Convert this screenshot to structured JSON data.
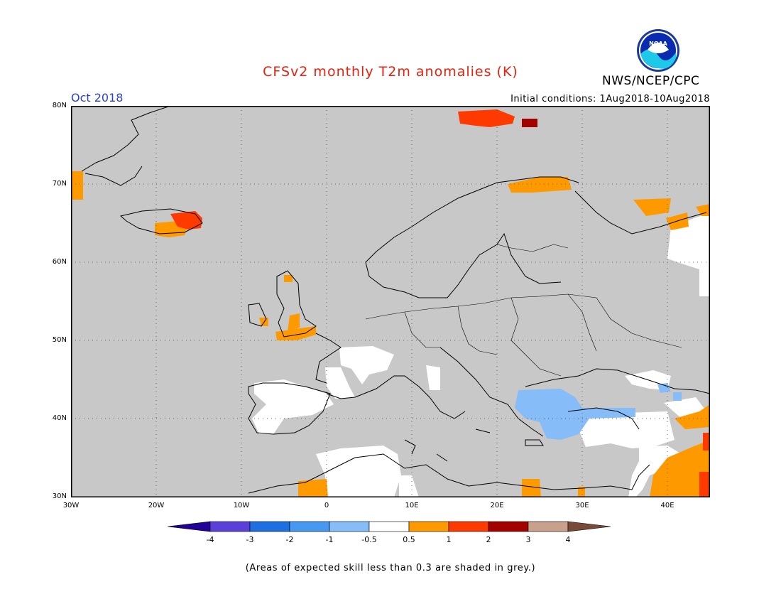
{
  "header": {
    "title": "CFSv2 monthly T2m anomalies (K)",
    "period": "Oct 2018",
    "initial_conditions": "Initial conditions: 1Aug2018-10Aug2018",
    "agency": "NWS/NCEP/CPC",
    "logo_text": "NOAA"
  },
  "axes": {
    "lat_labels": [
      "80N",
      "70N",
      "60N",
      "50N",
      "40N",
      "30N"
    ],
    "lon_labels": [
      "30W",
      "20W",
      "10W",
      "0",
      "10E",
      "20E",
      "30E",
      "40E"
    ],
    "lon_range": [
      -30,
      45
    ],
    "lat_range": [
      30,
      80
    ],
    "grid": "dotted"
  },
  "legend": {
    "ticks": [
      "-4",
      "-3",
      "-2",
      "-1",
      "-0.5",
      "0.5",
      "1",
      "2",
      "3",
      "4"
    ],
    "colors": [
      "#22009a",
      "#5a3fd8",
      "#1e6fe0",
      "#4698f0",
      "#86bcf7",
      "#ffffff",
      "#ff9900",
      "#ff3a00",
      "#a30000",
      "#c9a08c",
      "#7a4a38"
    ]
  },
  "colors": {
    "no_skill": "#c8c8c8",
    "near_zero": "#ffffff",
    "warm1": "#ff9900",
    "warm2": "#ff3a00",
    "warm3": "#a30000",
    "cool1": "#86bcf7",
    "title": "#e8200c",
    "period": "#2b3fd6"
  },
  "footnote": "(Areas of expected skill less than 0.3 are shaded in grey.)"
}
